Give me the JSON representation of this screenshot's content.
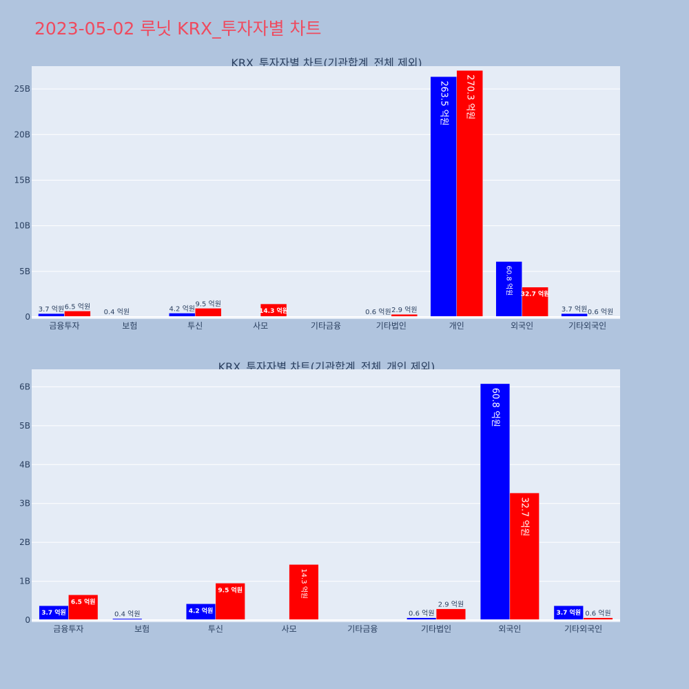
{
  "page": {
    "title": "2023-05-02 루닛 KRX_투자자별 차트"
  },
  "colors": {
    "background": "#b0c4de",
    "plot_bg": "#e5ecf6",
    "series_a": "#0000ff",
    "series_b": "#ff0000",
    "title": "#ef4a5e"
  },
  "chart_data": [
    {
      "type": "bar",
      "title": "KRX_투자자별 차트(기관합계_전체 제외)",
      "categories": [
        "금융투자",
        "보험",
        "투신",
        "사모",
        "기타금융",
        "기타법인",
        "개인",
        "외국인",
        "기타외국인"
      ],
      "ylim": [
        0,
        27.5
      ],
      "ytick_values": [
        0,
        5,
        10,
        15,
        20,
        25
      ],
      "ytick_labels": [
        "0",
        "5B",
        "10B",
        "15B",
        "20B",
        "25B"
      ],
      "grid": true,
      "series": [
        {
          "color": "#0000ff",
          "values": [
            0.37,
            0.04,
            0.42,
            null,
            null,
            0.06,
            26.35,
            6.08,
            0.37
          ],
          "labels": [
            "3.7 억원",
            "0.4 억원",
            "4.2 억원",
            "",
            "",
            "0.6 억원",
            "263.5 억원",
            "60.8 억원",
            "3.7 억원"
          ]
        },
        {
          "color": "#ff0000",
          "values": [
            0.65,
            null,
            0.95,
            1.43,
            null,
            0.29,
            27.03,
            3.27,
            0.06
          ],
          "labels": [
            "6.5 억원",
            "",
            "9.5 억원",
            "14.3 억원",
            "",
            "2.9 억원",
            "270.3 억원",
            "32.7 억원",
            "0.6 억원"
          ]
        }
      ]
    },
    {
      "type": "bar",
      "title": "KRX_투자자별 차트(기관합계_전체_개인 제외)",
      "categories": [
        "금융투자",
        "보험",
        "투신",
        "사모",
        "기타금융",
        "기타법인",
        "외국인",
        "기타외국인"
      ],
      "ylim": [
        0,
        6.45
      ],
      "ytick_values": [
        0,
        1,
        2,
        3,
        4,
        5,
        6
      ],
      "ytick_labels": [
        "0",
        "1B",
        "2B",
        "3B",
        "4B",
        "5B",
        "6B"
      ],
      "grid": true,
      "series": [
        {
          "color": "#0000ff",
          "values": [
            0.37,
            0.04,
            0.42,
            null,
            null,
            0.06,
            6.08,
            0.37
          ],
          "labels": [
            "3.7 억원",
            "0.4 억원",
            "4.2 억원",
            "",
            "",
            "0.6 억원",
            "60.8 억원",
            "3.7 억원"
          ]
        },
        {
          "color": "#ff0000",
          "values": [
            0.65,
            null,
            0.95,
            1.43,
            null,
            0.29,
            3.27,
            0.06
          ],
          "labels": [
            "6.5 억원",
            "",
            "9.5 억원",
            "14.3 억원",
            "",
            "2.9 억원",
            "32.7 억원",
            "0.6 억원"
          ]
        }
      ]
    }
  ]
}
